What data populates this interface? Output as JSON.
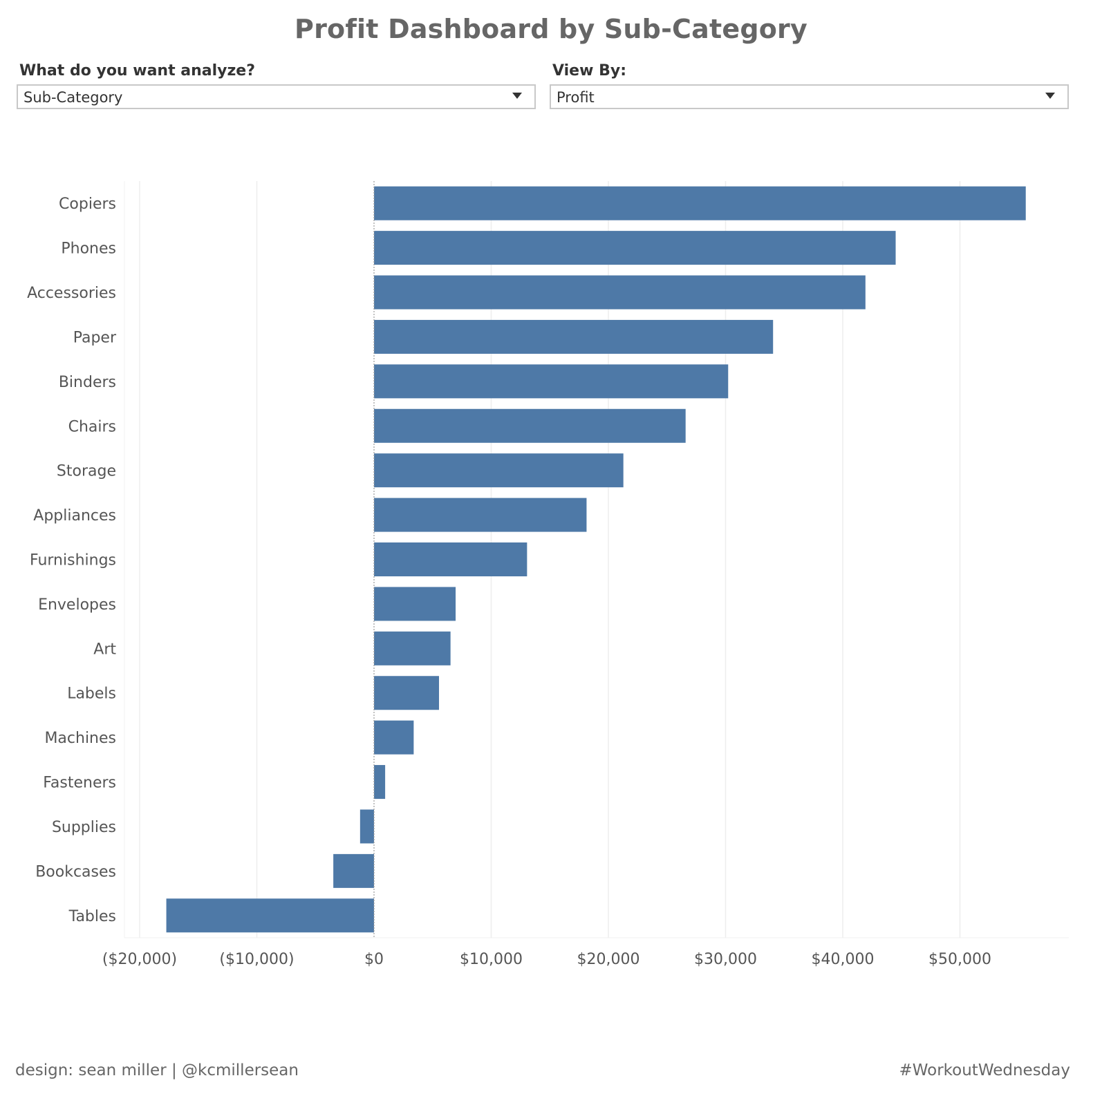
{
  "title": "Profit Dashboard by Sub-Category",
  "controls": {
    "analyze": {
      "label": "What do you want analyze?",
      "value": "Sub-Category"
    },
    "view_by": {
      "label": "View By:",
      "value": "Profit"
    }
  },
  "footer": {
    "credit": "design: sean miller | @kcmillersean",
    "hashtag": "#WorkoutWednesday"
  },
  "colors": {
    "bar": "#4e79a7",
    "text": "#555555",
    "grid": "#eeeeee"
  },
  "chart_data": {
    "type": "bar",
    "orientation": "horizontal",
    "categories": [
      "Copiers",
      "Phones",
      "Accessories",
      "Paper",
      "Binders",
      "Chairs",
      "Storage",
      "Appliances",
      "Furnishings",
      "Envelopes",
      "Art",
      "Labels",
      "Machines",
      "Fasteners",
      "Supplies",
      "Bookcases",
      "Tables"
    ],
    "values": [
      55618,
      44516,
      41937,
      34054,
      30222,
      26590,
      21279,
      18138,
      13059,
      6964,
      6528,
      5546,
      3385,
      950,
      -1189,
      -3473,
      -17725
    ],
    "xlim": [
      -22000,
      59500
    ],
    "xticks": [
      -20000,
      -10000,
      0,
      10000,
      20000,
      30000,
      40000,
      50000
    ],
    "xtick_labels": [
      "($20,000)",
      "($10,000)",
      "$0",
      "$10,000",
      "$20,000",
      "$30,000",
      "$40,000",
      "$50,000"
    ],
    "grid": true,
    "title": "",
    "xlabel": "",
    "ylabel": ""
  }
}
